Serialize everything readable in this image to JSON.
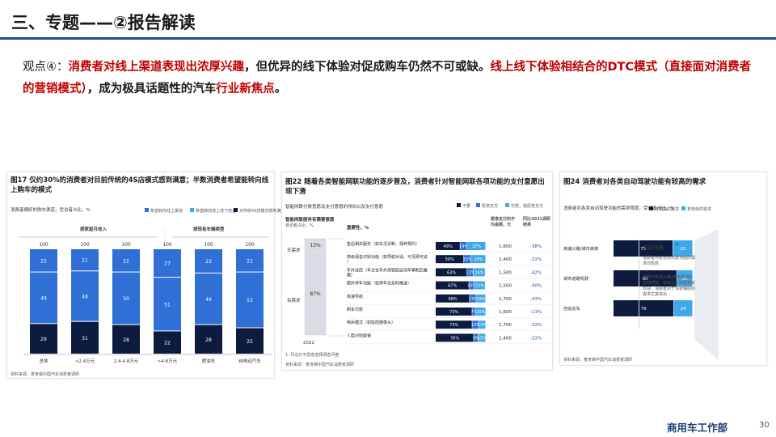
{
  "header": {
    "title": "三、专题——②报告解读"
  },
  "viewpoint": {
    "prefix": "观点④：",
    "red1": "消费者对线上渠道表现出浓厚兴趣",
    "mid": "，但优异的线下体验对促成购车仍然不可或缺。",
    "red2": "线上线下体验相结合的DTC模式（直接面对消费者的营销模式）",
    "tail": "，成为极具话题性的汽车",
    "red3": "行业新焦点",
    "end": "。"
  },
  "colors": {
    "navy": "#0d1b3e",
    "blue": "#2f6fd6",
    "lightblue": "#3fa9e8",
    "red": "#c00000",
    "accent": "#1f4fa0"
  },
  "fig17": {
    "title": "图17 仅约30%的消费者对目前传统的4S店模式感到满意；半数消费者希望能转向线上购车的模式",
    "subtitle": "消费者偏好的购车渠道，受访者占比，%",
    "legend": [
      "希望转向线上渠道",
      "希望转向线上线下结合",
      "对传统4S店模式感到满意"
    ],
    "group1": "按家庭月收入",
    "group2": "按现有车辆类型",
    "source": "资料来源：麦肯锡中国汽车消费者调研",
    "chart_data": {
      "type": "bar",
      "categories": [
        "总体",
        "<2.4万元",
        "2.4-4.8万元",
        ">4.8万元",
        "燃油车",
        "纯电动汽车"
      ],
      "totals": [
        100,
        100,
        100,
        100,
        100,
        100
      ],
      "series": [
        {
          "name": "对传统4S店模式感到满意",
          "values": [
            29,
            31,
            28,
            22,
            28,
            25
          ]
        },
        {
          "name": "希望转向线上线下结合",
          "values": [
            49,
            48,
            50,
            51,
            49,
            53
          ]
        },
        {
          "name": "希望转向线上渠道",
          "values": [
            22,
            21,
            22,
            27,
            23,
            22
          ]
        }
      ]
    }
  },
  "fig22": {
    "title": "图22 随着各类智能网联功能的逐步普及，消费者针对智能网联各项功能的支付意愿出现下滑",
    "subtitle": "智能网联付费意愿及支付意愿的倾向以及支付意愿",
    "legend": [
      "不要",
      "愿意支付",
      "付费，我愿意支付"
    ],
    "left_header": "智能网联服务有需要意愿",
    "left_sub": "受访者占比，%",
    "no_need": "无需求",
    "need": "有需求",
    "year": "2022",
    "col_service": "重要性，%",
    "col_price": "愿意支付的平均金额，元",
    "col_change": "同比2021调研结果",
    "footnote": "1. 月总价不愿意选择调查问卷",
    "source": "资料来源：麦肯锡中国汽车消费者调研",
    "chart_data": {
      "type": "bar",
      "stack": {
        "categories": [
          "2022"
        ],
        "series": [
          {
            "name": "无需求",
            "values": [
              13
            ]
          },
          {
            "name": "有需求",
            "values": [
              87
            ]
          }
        ]
      },
      "rows": [
        {
          "label": "售后相关服务（如车况诊断、保养预约）",
          "values": [
            49,
            14,
            37
          ],
          "price": "1,600",
          "change": "-38%"
        },
        {
          "label": "高级语音识别功能（如导航对话、可见即可说）",
          "values": [
            56,
            15,
            29
          ],
          "price": "1,400",
          "change": "-22%"
        },
        {
          "label": "车外远控（车主在车外用钥匙启动车辆和后备箱）",
          "values": [
            63,
            12,
            24
          ],
          "price": "1,500",
          "change": "-42%"
        },
        {
          "label": "额外停车功能（如停车位实时推送）",
          "values": [
            67,
            10,
            22
          ],
          "price": "1,500",
          "change": "-40%"
        },
        {
          "label": "高速导航",
          "values": [
            68,
            13,
            19
          ],
          "price": "1,700",
          "change": "-43%"
        },
        {
          "label": "刷车付款",
          "values": [
            73,
            7,
            20
          ],
          "price": "1,600",
          "change": "-13%"
        },
        {
          "label": "哨兵模式（如监控摄像头）",
          "values": [
            73,
            13,
            14
          ],
          "price": "1,700",
          "change": "-32%"
        },
        {
          "label": "人脸识别登录",
          "values": [
            76,
            9,
            15
          ],
          "price": "1,400",
          "change": "-33%"
        }
      ]
    }
  },
  "fig24": {
    "title": "图24 消费者对各类自动驾驶功能有较高的需求",
    "subtitle": "消费者对各类自动驾驶功能的需求程度，受访者占比，%",
    "legend": [
      "有较高的需求",
      "有较低的需求"
    ],
    "key_title": "关键洞察",
    "key_points": [
      "消费者对各自动驾驶功能的需求均较高",
      "相较于高速公路/城市场景的自动驾驶，自动泊车功能更受欢迎，消费者对于驾驶辅助的需求尤其突出"
    ],
    "source": "资料来源：麦肯锡中国汽车消费者调研",
    "chart_data": {
      "type": "bar",
      "categories": [
        "高速公路/城市高架",
        "城市道路驾驶",
        "自动泊车"
      ],
      "series": [
        {
          "name": "有较高的需求",
          "values": [
            75,
            80,
            76
          ]
        },
        {
          "name": "有较低的需求",
          "values": [
            25,
            20,
            24
          ]
        }
      ]
    }
  },
  "footer": {
    "brand": "商用车工作部",
    "page": "30"
  }
}
